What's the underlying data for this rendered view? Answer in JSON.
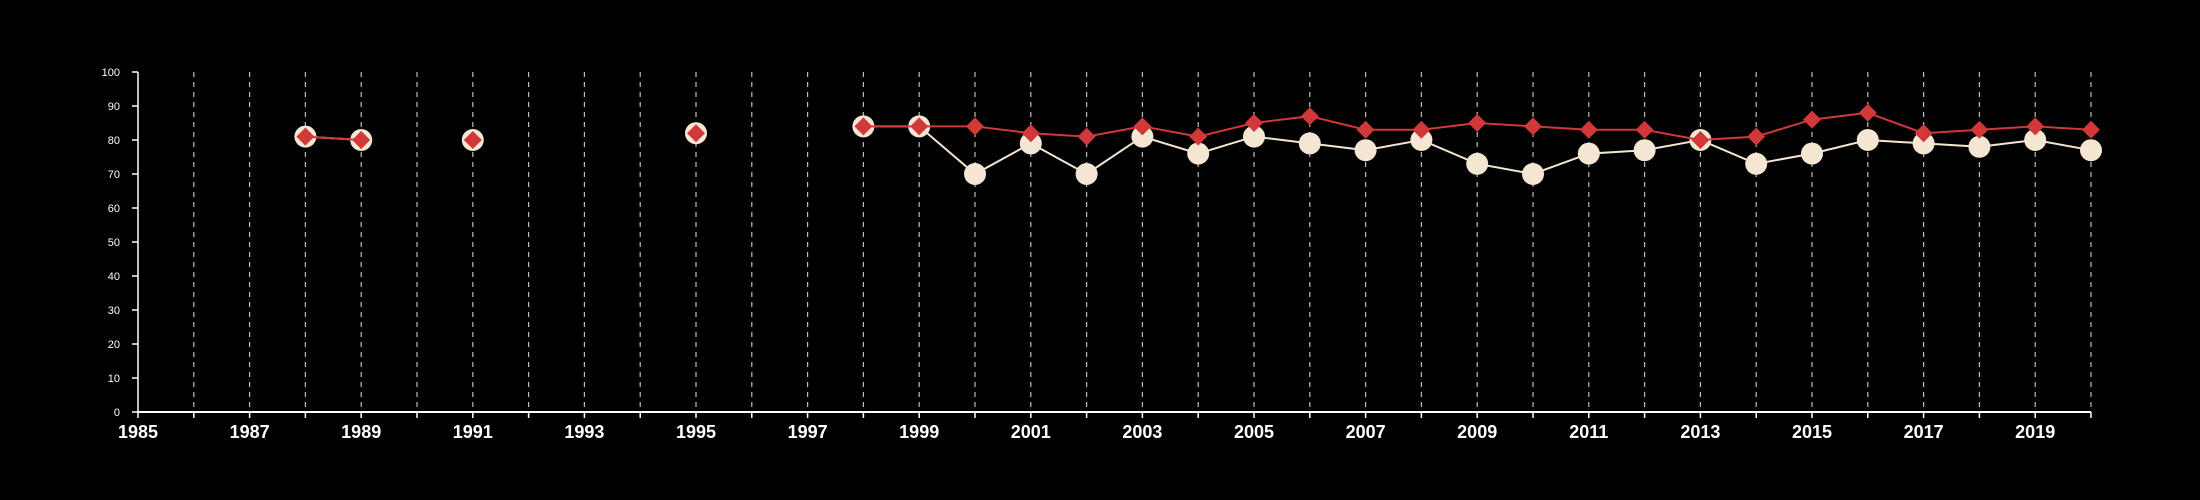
{
  "chart_data": {
    "type": "line",
    "title": "",
    "xlabel": "",
    "ylabel": "",
    "xlim": [
      1985,
      2020
    ],
    "ylim": [
      0,
      100
    ],
    "x_ticks": [
      1985,
      1987,
      1989,
      1991,
      1993,
      1995,
      1997,
      1999,
      2001,
      2003,
      2005,
      2007,
      2009,
      2011,
      2013,
      2015,
      2017,
      2019
    ],
    "y_ticks": [
      0,
      10,
      20,
      30,
      40,
      50,
      60,
      70,
      80,
      90,
      100
    ],
    "grid": "vertical dashed lines at every year",
    "legend": "none",
    "colors": {
      "background": "#000000",
      "axis": "#ffffff",
      "grid": "#bdbdbd",
      "series_circle": "#f5e6d3",
      "series_diamond": "#d0383a"
    },
    "series": [
      {
        "marker": "circle",
        "color": "#f5e6d3",
        "points": [
          [
            1988,
            81
          ],
          [
            1989,
            80
          ],
          [
            1991,
            80
          ],
          [
            1995,
            82
          ],
          [
            1998,
            84
          ],
          [
            1999,
            84
          ],
          [
            2000,
            70
          ],
          [
            2001,
            79
          ],
          [
            2002,
            70
          ],
          [
            2003,
            81
          ],
          [
            2004,
            76
          ],
          [
            2005,
            81
          ],
          [
            2006,
            79
          ],
          [
            2007,
            77
          ],
          [
            2008,
            80
          ],
          [
            2009,
            73
          ],
          [
            2010,
            70
          ],
          [
            2011,
            76
          ],
          [
            2012,
            77
          ],
          [
            2013,
            80
          ],
          [
            2014,
            73
          ],
          [
            2015,
            76
          ],
          [
            2016,
            80
          ],
          [
            2017,
            79
          ],
          [
            2018,
            78
          ],
          [
            2019,
            80
          ],
          [
            2020,
            77
          ]
        ]
      },
      {
        "marker": "diamond",
        "color": "#d0383a",
        "points": [
          [
            1988,
            81
          ],
          [
            1989,
            80
          ],
          [
            1991,
            80
          ],
          [
            1995,
            82
          ],
          [
            1998,
            84
          ],
          [
            1999,
            84
          ],
          [
            2000,
            84
          ],
          [
            2001,
            82
          ],
          [
            2002,
            81
          ],
          [
            2003,
            84
          ],
          [
            2004,
            81
          ],
          [
            2005,
            85
          ],
          [
            2006,
            87
          ],
          [
            2007,
            83
          ],
          [
            2008,
            83
          ],
          [
            2009,
            85
          ],
          [
            2010,
            84
          ],
          [
            2011,
            83
          ],
          [
            2012,
            83
          ],
          [
            2013,
            80
          ],
          [
            2014,
            81
          ],
          [
            2015,
            86
          ],
          [
            2016,
            88
          ],
          [
            2017,
            82
          ],
          [
            2018,
            83
          ],
          [
            2019,
            84
          ],
          [
            2020,
            83
          ]
        ]
      }
    ]
  }
}
